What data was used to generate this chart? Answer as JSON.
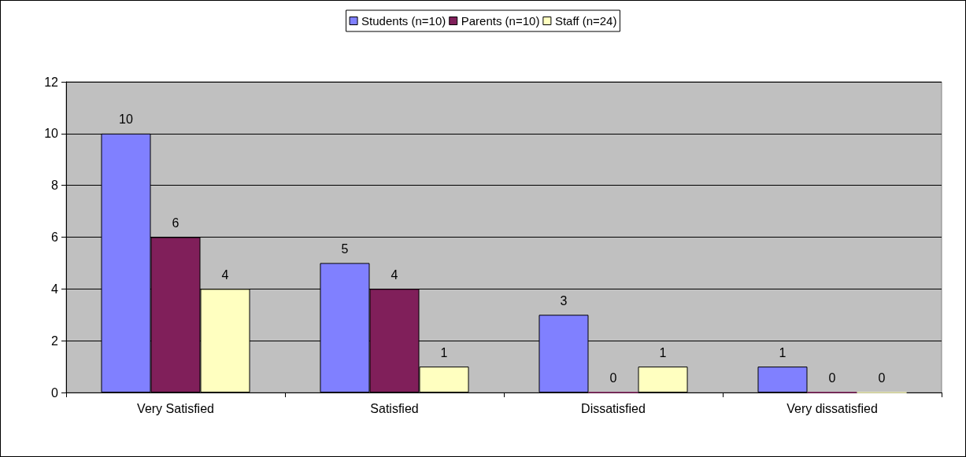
{
  "chart_data": {
    "type": "bar",
    "categories": [
      "Very Satisfied",
      "Satisfied",
      "Dissatisfied",
      "Very dissatisfied"
    ],
    "series": [
      {
        "name": "Students (n=10)",
        "color": "#8080ff",
        "values": [
          10,
          5,
          3,
          1
        ]
      },
      {
        "name": "Parents (n=10)",
        "color": "#801f5a",
        "values": [
          6,
          4,
          0,
          0
        ]
      },
      {
        "name": "Staff (n=24)",
        "color": "#ffffc0",
        "values": [
          4,
          1,
          1,
          0
        ]
      }
    ],
    "ylim": [
      0,
      12
    ],
    "yticks": [
      0,
      2,
      4,
      6,
      8,
      10,
      12
    ],
    "grid": "y",
    "legend": "top",
    "data_labels": true
  }
}
